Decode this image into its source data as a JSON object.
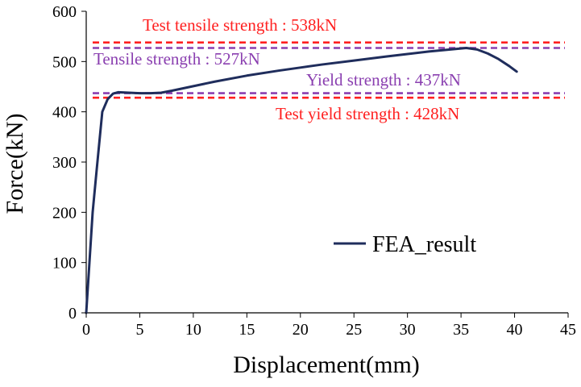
{
  "chart_data": {
    "type": "line",
    "title": "",
    "xlabel": "Displacement(mm)",
    "ylabel": "Force(kN)",
    "xlim": [
      0,
      45
    ],
    "ylim": [
      0,
      600
    ],
    "xticks": [
      0,
      5,
      10,
      15,
      20,
      25,
      30,
      35,
      40,
      45
    ],
    "yticks": [
      0,
      100,
      200,
      300,
      400,
      500,
      600
    ],
    "grid": false,
    "legend_position": "center-right",
    "series": [
      {
        "name": "FEA_result",
        "color": "#1f2d5c",
        "x": [
          0,
          0.3,
          0.6,
          1.0,
          1.5,
          2.0,
          2.5,
          3.0,
          4.0,
          5.0,
          6.0,
          7.0,
          8.0,
          10.0,
          12.0,
          15.0,
          18.0,
          20.0,
          22.0,
          25.0,
          28.0,
          30.0,
          32.0,
          34.0,
          35.5,
          36.5,
          37.5,
          38.5,
          39.5,
          40.2
        ],
        "y": [
          0,
          100,
          200,
          290,
          400,
          425,
          436,
          439,
          438,
          437,
          437,
          438,
          442,
          451,
          460,
          472,
          482,
          488,
          494,
          502,
          510,
          515,
          520,
          524,
          527,
          524,
          516,
          505,
          491,
          480
        ]
      }
    ],
    "reference_lines": [
      {
        "value": 538,
        "label": "Test tensile strength : 538kN",
        "color": "#ff2020",
        "style": "dashed"
      },
      {
        "value": 527,
        "label": "Tensile strength : 527kN",
        "color": "#8a3fb0",
        "style": "dashed"
      },
      {
        "value": 437,
        "label": "Yield strength : 437kN",
        "color": "#8a3fb0",
        "style": "dashed"
      },
      {
        "value": 428,
        "label": "Test yield strength : 428kN",
        "color": "#ff2020",
        "style": "dashed"
      }
    ]
  }
}
